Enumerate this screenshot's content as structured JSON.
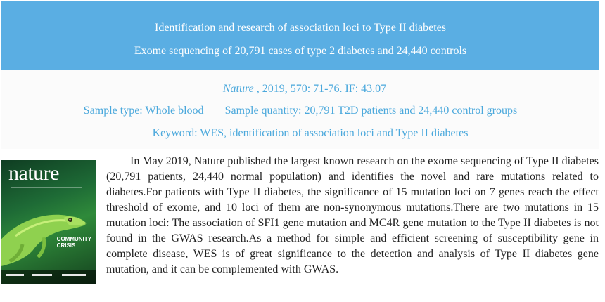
{
  "banner": {
    "title": "Identification and research of association loci to Type II diabetes",
    "subtitle": "Exome sequencing of 20,791 cases of type 2 diabetes and 24,440 controls"
  },
  "citation": {
    "journal": "Nature",
    "details": " , 2019, 570: 71-76. IF: 43.07"
  },
  "sample": {
    "type": "Sample type: Whole blood",
    "quantity": "Sample quantity: 20,791 T2D patients and 24,440 control groups"
  },
  "keyword": "Keyword: WES, identification of association loci and Type II diabetes",
  "cover": {
    "masthead": "nature",
    "headline_line1": "COMMUNITY",
    "headline_line2": "CRISIS"
  },
  "body_text": "In May 2019, Nature published the largest known research on the exome sequencing of Type II diabetes (20,791 patients, 24,440 normal population) and identifies the novel and rare mutations related to diabetes.For patients with Type II diabetes, the significance of 15 mutation loci on 7 genes reach the effect threshold of exome, and 10 loci of them are non-synonymous mutations.There are two mutations in 15 mutation loci: The association of SFI1 gene mutation and MC4R gene mutation to the Type II diabetes is not found in the GWAS research.As a method for simple and efficient screening of susceptibility gene in complete disease, WES is of great significance to the detection and analysis of Type II diabetes gene mutation, and it can be complemented with GWAS.",
  "colors": {
    "banner_bg": "#5aaee3",
    "accent_text": "#4aa8dc",
    "body_text": "#222222"
  }
}
